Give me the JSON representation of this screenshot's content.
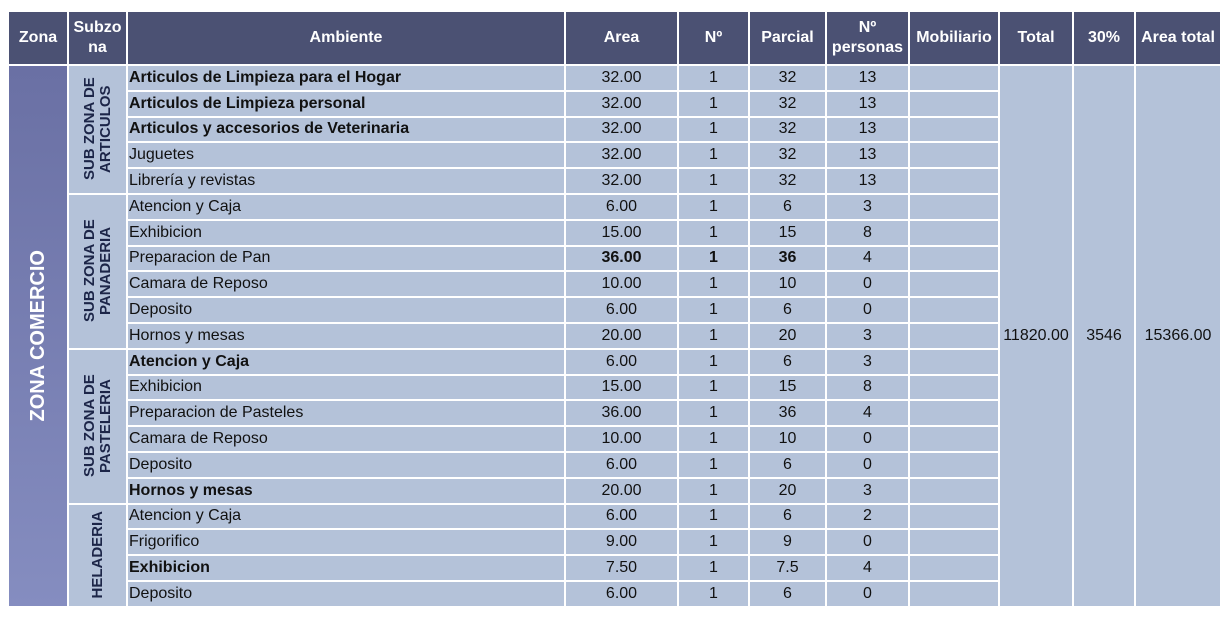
{
  "header": [
    "Zona",
    "Subzona",
    "Ambiente",
    "Area",
    "Nº",
    "Parcial",
    "Nº personas",
    "Mobiliario",
    "Total",
    "30%",
    "Area total"
  ],
  "zona": "ZONA COMERCIO",
  "subzonas": [
    {
      "label": "SUB ZONA DE ARTICULOS",
      "rows": [
        [
          "Articulos de Limpieza para el Hogar",
          "32.00",
          "1",
          "32",
          "13"
        ],
        [
          "Articulos de Limpieza personal",
          "32.00",
          "1",
          "32",
          "13"
        ],
        [
          "Articulos y accesorios de Veterinaria",
          "32.00",
          "1",
          "32",
          "13"
        ],
        [
          "Juguetes",
          "32.00",
          "1",
          "32",
          "13"
        ],
        [
          "Librería y revistas",
          "32.00",
          "1",
          "32",
          "13"
        ]
      ]
    },
    {
      "label": "SUB ZONA DE PANADERIA",
      "rows": [
        [
          "Atencion y Caja",
          "6.00",
          "1",
          "6",
          "3"
        ],
        [
          "Exhibicion",
          "15.00",
          "1",
          "15",
          "8"
        ],
        [
          "Preparacion de Pan",
          "36.00",
          "1",
          "36",
          "4"
        ],
        [
          "Camara de Reposo",
          "10.00",
          "1",
          "10",
          "0"
        ],
        [
          "Deposito",
          "6.00",
          "1",
          "6",
          "0"
        ],
        [
          "Hornos y mesas",
          "20.00",
          "1",
          "20",
          "3"
        ]
      ]
    },
    {
      "label": "SUB ZONA DE PASTELERIA",
      "rows": [
        [
          "Atencion y Caja",
          "6.00",
          "1",
          "6",
          "3"
        ],
        [
          "Exhibicion",
          "15.00",
          "1",
          "15",
          "8"
        ],
        [
          "Preparacion de Pasteles",
          "36.00",
          "1",
          "36",
          "4"
        ],
        [
          "Camara de Reposo",
          "10.00",
          "1",
          "10",
          "0"
        ],
        [
          "Deposito",
          "6.00",
          "1",
          "6",
          "0"
        ],
        [
          "Hornos y mesas",
          "20.00",
          "1",
          "20",
          "3"
        ]
      ]
    },
    {
      "label": "HELADERIA",
      "rows": [
        [
          "Atencion y Caja",
          "6.00",
          "1",
          "6",
          "2"
        ],
        [
          "Frigorifico",
          "9.00",
          "1",
          "9",
          "0"
        ],
        [
          "Exhibicion",
          "7.50",
          "1",
          "7.5",
          "4"
        ],
        [
          "Deposito",
          "6.00",
          "1",
          "6",
          "0"
        ]
      ]
    }
  ],
  "totals": [
    "11820.00",
    "3546",
    "15366.00"
  ]
}
